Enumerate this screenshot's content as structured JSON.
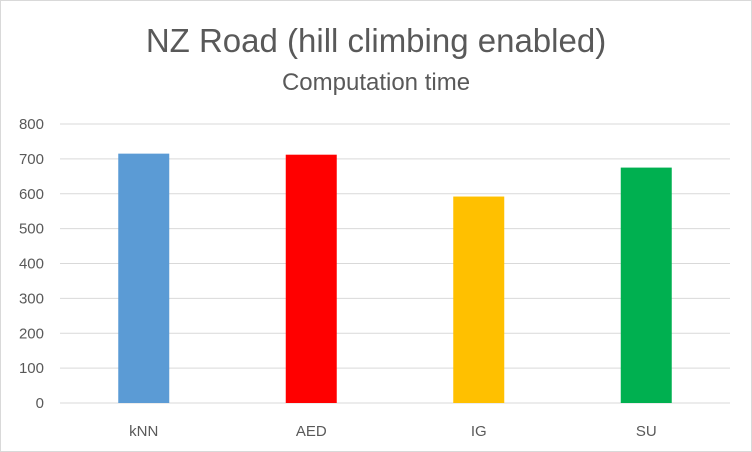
{
  "chart_data": {
    "type": "bar",
    "title": "NZ Road (hill climbing enabled)",
    "subtitle": "Computation time",
    "categories": [
      "kNN",
      "AED",
      "IG",
      "SU"
    ],
    "values": [
      715,
      712,
      592,
      675
    ],
    "colors": [
      "#5b9bd5",
      "#ff0000",
      "#ffc000",
      "#00b050"
    ],
    "ylim": [
      0,
      800
    ],
    "yticks": [
      0,
      100,
      200,
      300,
      400,
      500,
      600,
      700,
      800
    ],
    "grid": true,
    "legend": "none"
  }
}
